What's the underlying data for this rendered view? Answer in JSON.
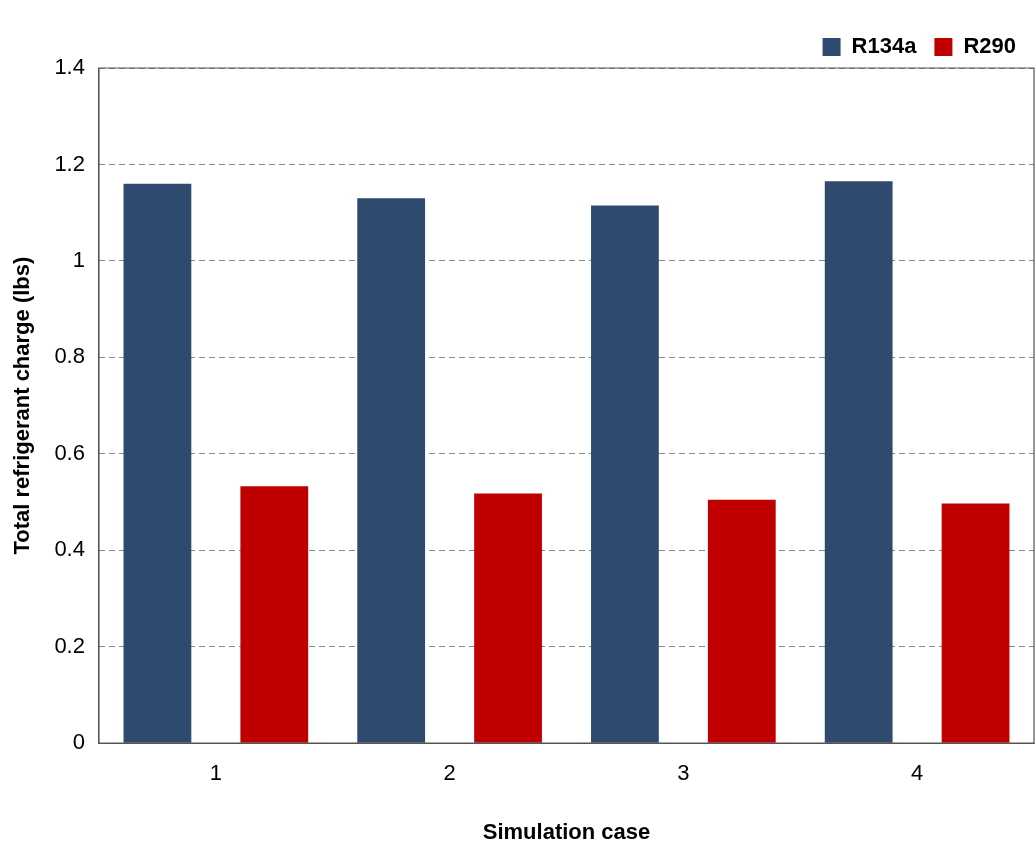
{
  "chart_data": {
    "type": "bar",
    "xlabel": "Simulation case",
    "ylabel": "Total refrigerant charge (lbs)",
    "categories": [
      "1",
      "2",
      "3",
      "4"
    ],
    "series": [
      {
        "name": "R134a",
        "color": "#2e4a6e",
        "values": [
          1.16,
          1.13,
          1.115,
          1.165
        ]
      },
      {
        "name": "R290",
        "color": "#c00000",
        "values": [
          0.533,
          0.518,
          0.505,
          0.497
        ]
      }
    ],
    "ylim": [
      0,
      1.4
    ],
    "yticks": [
      0,
      0.2,
      0.4,
      0.6,
      0.8,
      1,
      1.2,
      1.4
    ],
    "grid": "y",
    "legend": "top right"
  }
}
